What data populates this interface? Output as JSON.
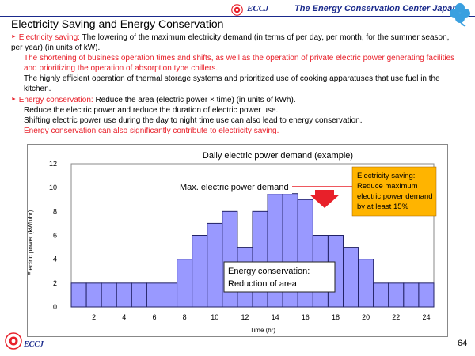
{
  "header": {
    "org_short": "ECCJ",
    "org_full": "The Energy Conservation Center Japan",
    "logo_icon": "eccj-logo-icon",
    "clover_icon": "clover-icon"
  },
  "title": "Electricity Saving and Energy Conservation",
  "body": {
    "saving_label": "Electricity saving:",
    "saving_text": " The lowering of the maximum electricity demand (in terms of per day, per month, for the summer season, per year) (in units of kW).",
    "saving_red": "The shortening of business operation times and shifts, as well as the operation of private electric power generating facilities and prioritizing the operation of absorption type chillers.",
    "saving_black": "The highly efficient operation of thermal storage systems and prioritized use of cooking apparatuses that use fuel in the kitchen.",
    "conservation_label": "Energy conservation:",
    "conservation_text": " Reduce the area (electric power × time) (in units of kWh).",
    "cons_line1": "Reduce the electric power and reduce the duration of electric power use.",
    "cons_line2": "Shifting electric power use during the day to night time use can also lead to energy conservation.",
    "cons_red": "Energy conservation can also significantly contribute to electricity saving."
  },
  "chart_data": {
    "type": "bar",
    "title": "Daily electric power demand (example)",
    "xlabel": "Time (hr)",
    "ylabel": "Electric power (kWh/hr)",
    "x_tick_labels": [
      "2",
      "4",
      "6",
      "8",
      "10",
      "12",
      "14",
      "16",
      "18",
      "20",
      "22",
      "24"
    ],
    "y_tick_labels": [
      "0",
      "2",
      "4",
      "6",
      "8",
      "10",
      "12"
    ],
    "ylim": [
      0,
      12
    ],
    "xlim": [
      0,
      24
    ],
    "categories": [
      "1",
      "2",
      "3",
      "4",
      "5",
      "6",
      "7",
      "8",
      "9",
      "10",
      "11",
      "12",
      "13",
      "14",
      "15",
      "16",
      "17",
      "18",
      "19",
      "20",
      "21",
      "22",
      "23",
      "24"
    ],
    "values": [
      2,
      2,
      2,
      2,
      2,
      2,
      2,
      4,
      6,
      7,
      8,
      5,
      8,
      9.5,
      9.5,
      9,
      6,
      6,
      5,
      4,
      2,
      2,
      2,
      2
    ],
    "peak_value": 9.5,
    "annotations": {
      "max_demand": "Max. electric power demand",
      "saving_line1": "Electricity saving:",
      "saving_line2": "Reduce maximum",
      "saving_line3": "electric power demand",
      "saving_line4": "by at least 15%",
      "conservation_line1": "Energy conservation:",
      "conservation_line2": "Reduction of area"
    },
    "colors": {
      "bar": "#9999ff",
      "bar_edge": "#222266",
      "callout": "#ffb400",
      "arrow": "#e8202a",
      "plot_bg": "#ffffff"
    }
  },
  "footer": {
    "org_short": "ECCJ",
    "page_number": "64"
  }
}
